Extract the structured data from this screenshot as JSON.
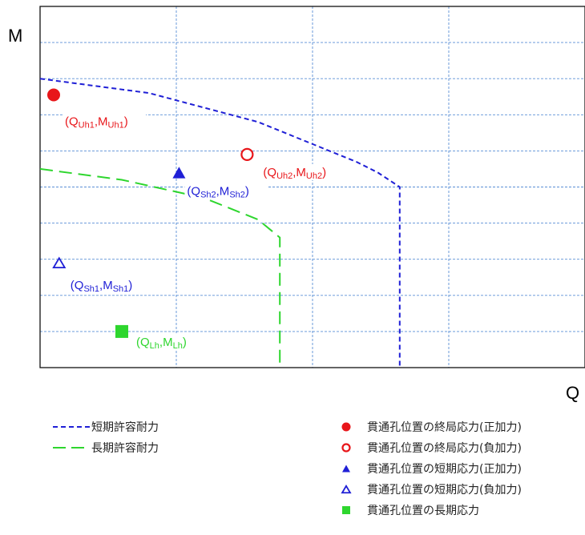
{
  "chart_data": {
    "type": "line",
    "title": "",
    "xlabel": "Q",
    "ylabel": "M",
    "grid": true,
    "xlim": [
      0,
      10
    ],
    "ylim": [
      0,
      10
    ],
    "x_ticks_shown": false,
    "y_ticks_shown": false,
    "colors": {
      "short_term": "#1f1fd6",
      "long_term": "#2ed62e",
      "ultimate": "#e8161a",
      "grid": "#5a8fd6"
    },
    "series": [
      {
        "name": "短期許容耐力",
        "style": "short-dashed",
        "color": "#1f1fd6",
        "points": [
          [
            0,
            8.0
          ],
          [
            2.0,
            7.6
          ],
          [
            4.0,
            6.8
          ],
          [
            5.8,
            5.7
          ],
          [
            6.2,
            5.4
          ],
          [
            6.6,
            5.0
          ],
          [
            6.6,
            0
          ]
        ]
      },
      {
        "name": "長期許容耐力",
        "style": "long-dashed",
        "color": "#2ed62e",
        "points": [
          [
            0,
            5.5
          ],
          [
            1.5,
            5.2
          ],
          [
            3.0,
            4.7
          ],
          [
            4.0,
            4.1
          ],
          [
            4.4,
            3.6
          ],
          [
            4.4,
            0
          ]
        ]
      }
    ],
    "points": [
      {
        "name": "貫通孔位置の終局応力(正加力)",
        "marker": "circle-filled",
        "color": "#e8161a",
        "x": 0.25,
        "y": 7.55,
        "label": {
          "open": "(Q",
          "sub1": "Uh1",
          "mid": ",M",
          "sub2": "Uh1",
          "close": ")"
        }
      },
      {
        "name": "貫通孔位置の終局応力(負加力)",
        "marker": "circle-open",
        "color": "#e8161a",
        "x": 3.8,
        "y": 5.9,
        "label": {
          "open": "(Q",
          "sub1": "Uh2",
          "mid": ",M",
          "sub2": "Uh2",
          "close": ")"
        }
      },
      {
        "name": "貫通孔位置の短期応力(正加力)",
        "marker": "triangle-filled",
        "color": "#1f1fd6",
        "x": 2.55,
        "y": 5.4,
        "label": {
          "open": "(Q",
          "sub1": "Sh2",
          "mid": ",M",
          "sub2": "Sh2",
          "close": ")"
        }
      },
      {
        "name": "貫通孔位置の短期応力(負加力)",
        "marker": "triangle-open",
        "color": "#1f1fd6",
        "x": 0.35,
        "y": 2.9,
        "label": {
          "open": "(Q",
          "sub1": "Sh1",
          "mid": ",M",
          "sub2": "Sh1",
          "close": ")"
        }
      },
      {
        "name": "貫通孔位置の長期応力",
        "marker": "square-filled",
        "color": "#2ed62e",
        "x": 1.5,
        "y": 1.0,
        "label": {
          "open": "(Q",
          "sub1": "Lh",
          "mid": ",M",
          "sub2": "Lh",
          "close": ")"
        }
      }
    ],
    "legend_placement": "bottom"
  }
}
